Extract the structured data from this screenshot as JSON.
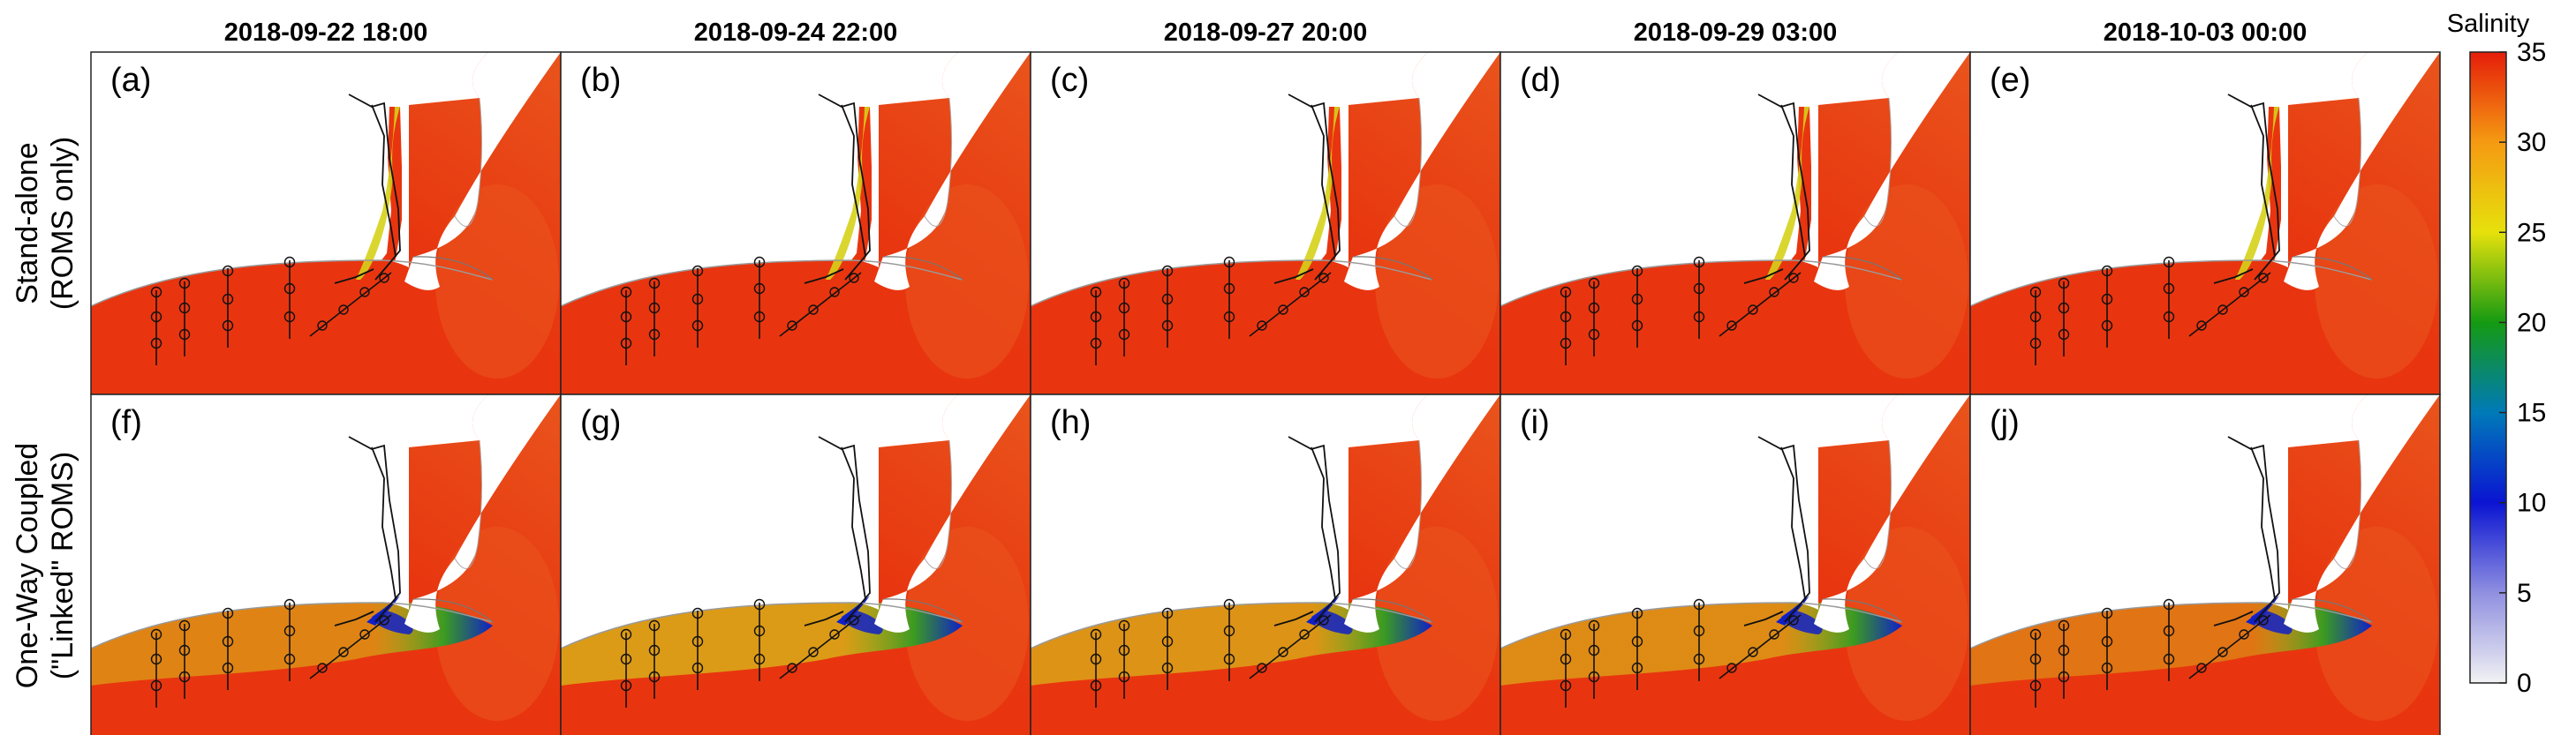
{
  "figure": {
    "column_titles": [
      "2018-09-22 18:00",
      "2018-09-24 22:00",
      "2018-09-27 20:00",
      "2018-09-29 03:00",
      "2018-10-03 00:00"
    ],
    "row_labels": [
      {
        "line1": "Stand-alone",
        "line2": "(ROMS only)"
      },
      {
        "line1": "One-Way Coupled",
        "line2": "(\"Linked\" ROMS)"
      }
    ],
    "panel_labels": [
      [
        "(a)",
        "(b)",
        "(c)",
        "(d)",
        "(e)"
      ],
      [
        "(f)",
        "(g)",
        "(h)",
        "(i)",
        "(j)"
      ]
    ],
    "plume": [
      [
        0,
        0,
        0,
        0,
        0
      ],
      [
        0.5,
        0.65,
        0.6,
        0.55,
        0.4
      ]
    ]
  },
  "colorbar": {
    "title": "Salinity",
    "min": 0,
    "max": 35,
    "ticks": [
      "0",
      "5",
      "10",
      "15",
      "20",
      "25",
      "30",
      "35"
    ],
    "stops": [
      {
        "value": 0,
        "color": "#f2f2f4"
      },
      {
        "value": 5,
        "color": "#8f8fe0"
      },
      {
        "value": 10,
        "color": "#0a14d2"
      },
      {
        "value": 15,
        "color": "#007ab8"
      },
      {
        "value": 20,
        "color": "#159a12"
      },
      {
        "value": 25,
        "color": "#e6e10c"
      },
      {
        "value": 30,
        "color": "#f59a12"
      },
      {
        "value": 35,
        "color": "#e51e0a"
      }
    ]
  },
  "colors": {
    "ocean_offshore": "#e9541c",
    "ocean_nearshore": "#e8350f",
    "land": "#ffffff",
    "plume_fresh": "#1020c8",
    "plume_mid": "#3a9a22",
    "plume_brackish": "#d6d21a"
  }
}
